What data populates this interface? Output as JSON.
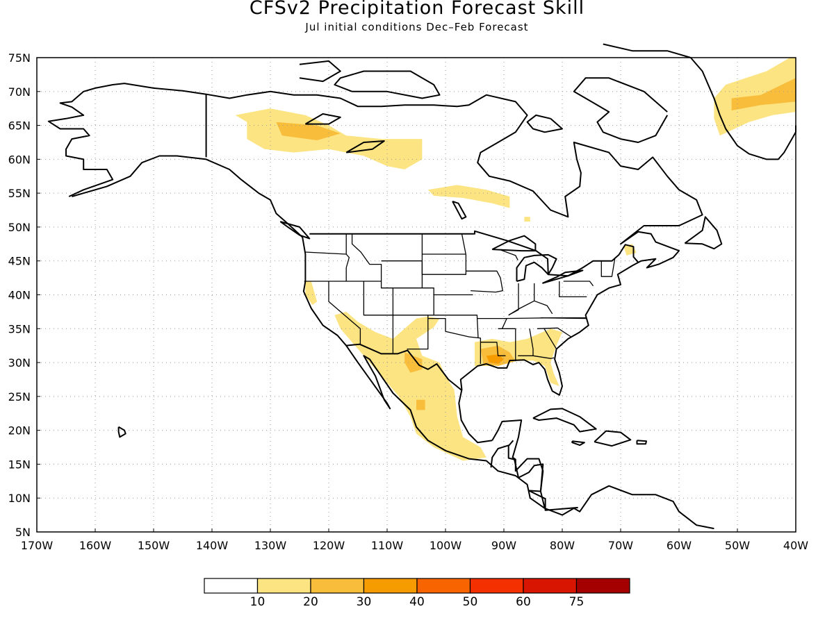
{
  "title": "CFSv2 Precipitation Forecast Skill",
  "subtitle": "Jul initial conditions   Dec–Feb Forecast",
  "map": {
    "projection": "equirectangular",
    "lon_range": [
      -170,
      -40
    ],
    "lat_range": [
      5,
      75
    ],
    "grid": "dotted",
    "lat_ticks": [
      {
        "value": 75,
        "label": "75N"
      },
      {
        "value": 70,
        "label": "70N"
      },
      {
        "value": 65,
        "label": "65N"
      },
      {
        "value": 60,
        "label": "60N"
      },
      {
        "value": 55,
        "label": "55N"
      },
      {
        "value": 50,
        "label": "50N"
      },
      {
        "value": 45,
        "label": "45N"
      },
      {
        "value": 40,
        "label": "40N"
      },
      {
        "value": 35,
        "label": "35N"
      },
      {
        "value": 30,
        "label": "30N"
      },
      {
        "value": 25,
        "label": "25N"
      },
      {
        "value": 20,
        "label": "20N"
      },
      {
        "value": 15,
        "label": "15N"
      },
      {
        "value": 10,
        "label": "10N"
      },
      {
        "value": 5,
        "label": "5N"
      }
    ],
    "lon_ticks": [
      {
        "value": -170,
        "label": "170W"
      },
      {
        "value": -160,
        "label": "160W"
      },
      {
        "value": -150,
        "label": "150W"
      },
      {
        "value": -140,
        "label": "140W"
      },
      {
        "value": -130,
        "label": "130W"
      },
      {
        "value": -120,
        "label": "120W"
      },
      {
        "value": -110,
        "label": "110W"
      },
      {
        "value": -100,
        "label": "100W"
      },
      {
        "value": -90,
        "label": "90W"
      },
      {
        "value": -80,
        "label": "80W"
      },
      {
        "value": -70,
        "label": "70W"
      },
      {
        "value": -60,
        "label": "60W"
      },
      {
        "value": -50,
        "label": "50W"
      },
      {
        "value": -40,
        "label": "40W"
      }
    ],
    "skill_regions": [
      {
        "name": "yukon-nw-territories",
        "level": "10-20",
        "outline": [
          [
            -136,
            66.5
          ],
          [
            -130,
            67.5
          ],
          [
            -124,
            66.5
          ],
          [
            -120,
            65
          ],
          [
            -117,
            63.5
          ],
          [
            -111,
            63
          ],
          [
            -104,
            63
          ],
          [
            -104,
            60
          ],
          [
            -107,
            58.5
          ],
          [
            -110,
            59
          ],
          [
            -114,
            60.5
          ],
          [
            -120,
            61.5
          ],
          [
            -126,
            61
          ],
          [
            -131,
            61.5
          ],
          [
            -134,
            63
          ],
          [
            -134,
            65.5
          ]
        ]
      },
      {
        "name": "yukon-nw-territories-core",
        "level": "20-30",
        "outline": [
          [
            -129,
            65.5
          ],
          [
            -122,
            65
          ],
          [
            -118,
            63.8
          ],
          [
            -122,
            62.8
          ],
          [
            -128,
            63.5
          ]
        ]
      },
      {
        "name": "hudson-bay-south",
        "level": "10-20",
        "outline": [
          [
            -103,
            55.5
          ],
          [
            -98,
            56.2
          ],
          [
            -93,
            55.5
          ],
          [
            -89,
            54.5
          ],
          [
            -89,
            52.8
          ],
          [
            -92,
            53.5
          ],
          [
            -97,
            54.3
          ],
          [
            -102,
            54.6
          ]
        ]
      },
      {
        "name": "greenland",
        "level": "10-20",
        "outline": [
          [
            -52,
            71
          ],
          [
            -45,
            73
          ],
          [
            -41,
            75
          ],
          [
            -40,
            75
          ],
          [
            -40,
            67
          ],
          [
            -44,
            66.5
          ],
          [
            -48,
            65.5
          ],
          [
            -53,
            63.5
          ],
          [
            -54,
            66
          ],
          [
            -54,
            69
          ]
        ]
      },
      {
        "name": "greenland-core",
        "level": "20-30",
        "outline": [
          [
            -51,
            69
          ],
          [
            -46,
            69.5
          ],
          [
            -40,
            72
          ],
          [
            -40,
            68.5
          ],
          [
            -46,
            68
          ],
          [
            -51,
            67.2
          ]
        ]
      },
      {
        "name": "southwest-mexico",
        "level": "10-20",
        "outline": [
          [
            -119,
            37
          ],
          [
            -117,
            37.5
          ],
          [
            -115,
            36
          ],
          [
            -112,
            34.5
          ],
          [
            -109,
            33.5
          ],
          [
            -107,
            35
          ],
          [
            -105,
            36.5
          ],
          [
            -103,
            36.8
          ],
          [
            -101,
            36.5
          ],
          [
            -102,
            35.2
          ],
          [
            -105,
            33.5
          ],
          [
            -104,
            31
          ],
          [
            -101,
            30
          ],
          [
            -100,
            28
          ],
          [
            -98.5,
            26
          ],
          [
            -98,
            22
          ],
          [
            -97,
            19
          ],
          [
            -94,
            17.5
          ],
          [
            -93,
            16
          ],
          [
            -97,
            15.5
          ],
          [
            -102,
            17.5
          ],
          [
            -105,
            19.5
          ],
          [
            -106,
            22
          ],
          [
            -108,
            25
          ],
          [
            -110,
            27
          ],
          [
            -112,
            29
          ],
          [
            -114,
            31
          ],
          [
            -116,
            33
          ],
          [
            -118,
            35
          ]
        ]
      },
      {
        "name": "northern-mexico-core",
        "level": "20-30",
        "outline": [
          [
            -107,
            31.5
          ],
          [
            -104,
            30.5
          ],
          [
            -104,
            29
          ],
          [
            -106,
            28.5
          ],
          [
            -107,
            30
          ]
        ]
      },
      {
        "name": "sierra-madre-core",
        "level": "20-30",
        "outline": [
          [
            -105,
            24.5
          ],
          [
            -103.5,
            24.5
          ],
          [
            -103.5,
            23
          ],
          [
            -105,
            23
          ]
        ]
      },
      {
        "name": "gulf-coast",
        "level": "10-20",
        "outline": [
          [
            -95,
            33
          ],
          [
            -92,
            33.5
          ],
          [
            -89,
            33
          ],
          [
            -86,
            33.5
          ],
          [
            -82,
            35
          ],
          [
            -80,
            34.5
          ],
          [
            -81,
            32.5
          ],
          [
            -82,
            30
          ],
          [
            -81.5,
            28.5
          ],
          [
            -80.5,
            26.5
          ],
          [
            -82,
            27
          ],
          [
            -83,
            29.5
          ],
          [
            -85,
            30.3
          ],
          [
            -89,
            30.2
          ],
          [
            -92,
            29.5
          ],
          [
            -95,
            29.5
          ]
        ]
      },
      {
        "name": "gulf-coast-core",
        "level": "20-30",
        "outline": [
          [
            -94,
            32
          ],
          [
            -91,
            32.5
          ],
          [
            -89,
            31.5
          ],
          [
            -88,
            30.2
          ],
          [
            -91,
            29.5
          ],
          [
            -93.5,
            29.8
          ]
        ]
      },
      {
        "name": "louisiana-core",
        "level": "30-40",
        "outline": [
          [
            -93,
            31
          ],
          [
            -91,
            31.2
          ],
          [
            -90,
            30.5
          ],
          [
            -91,
            29.8
          ],
          [
            -92.5,
            30
          ]
        ]
      },
      {
        "name": "california-coast",
        "level": "10-20",
        "outline": [
          [
            -124,
            42
          ],
          [
            -123,
            42
          ],
          [
            -122,
            39
          ],
          [
            -122.8,
            38.5
          ],
          [
            -124,
            40
          ]
        ]
      },
      {
        "name": "new-england",
        "level": "10-20",
        "outline": [
          [
            -69.5,
            47.2
          ],
          [
            -68,
            47.5
          ],
          [
            -67.3,
            46.2
          ],
          [
            -69,
            45.8
          ]
        ]
      },
      {
        "name": "great-lakes-north",
        "level": "10-20",
        "outline": [
          [
            -86.5,
            51.5
          ],
          [
            -85.5,
            51.5
          ],
          [
            -85.5,
            50.8
          ],
          [
            -86.5,
            50.8
          ]
        ]
      }
    ]
  },
  "colorbar": {
    "labels": [
      "10",
      "20",
      "30",
      "40",
      "50",
      "60",
      "75"
    ],
    "colors": [
      "#ffffff",
      "#fce482",
      "#f9bd3c",
      "#f79c00",
      "#f76400",
      "#f53000",
      "#d81500",
      "#a50000"
    ]
  }
}
